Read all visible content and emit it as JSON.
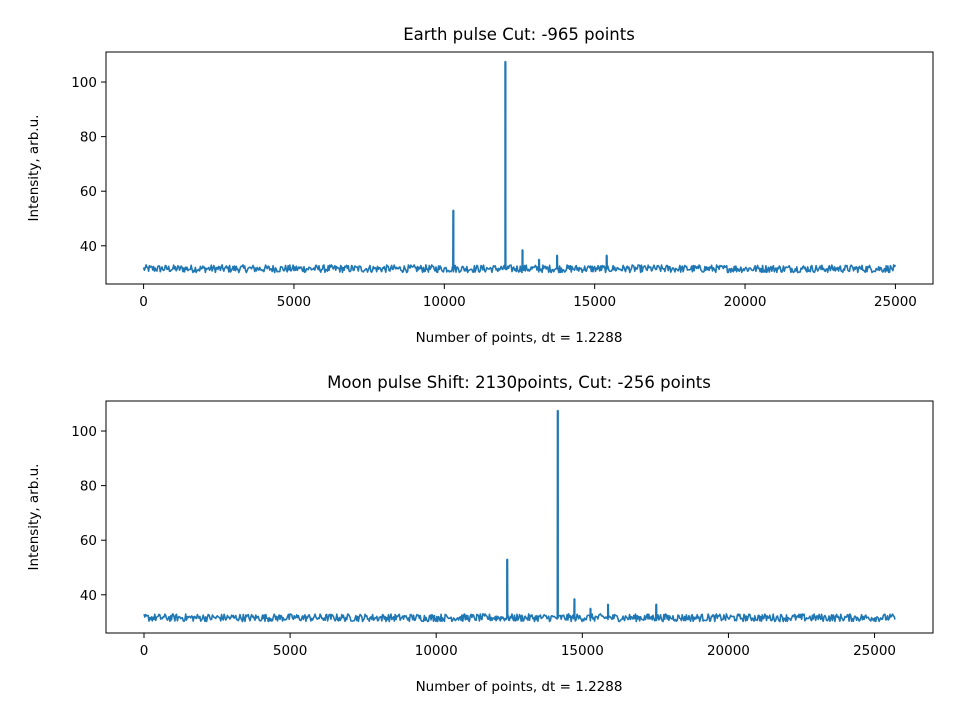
{
  "chart_data": [
    {
      "type": "line",
      "title": "Earth pulse Cut: -965 points",
      "xlabel": "Number of points, dt = 1.2288",
      "ylabel": "Intensity, arb.u.",
      "xlim": [
        -1250,
        26250
      ],
      "ylim": [
        26,
        111
      ],
      "xticks": [
        0,
        5000,
        10000,
        15000,
        20000,
        25000
      ],
      "yticks": [
        40,
        60,
        80,
        100
      ],
      "color": "#1f77b4",
      "baseline": {
        "x_start": 0,
        "x_end": 25000,
        "mean": 31.6,
        "band": [
          30.2,
          33.0
        ]
      },
      "peaks": [
        {
          "x": 10300,
          "y": 53
        },
        {
          "x": 12030,
          "y": 107.5
        },
        {
          "x": 12600,
          "y": 38.5
        },
        {
          "x": 13150,
          "y": 35
        },
        {
          "x": 13750,
          "y": 36.5
        },
        {
          "x": 15400,
          "y": 36.5
        }
      ]
    },
    {
      "type": "line",
      "title": "Moon pulse Shift: 2130points, Cut: -256 points",
      "xlabel": "Number of points, dt = 1.2288",
      "ylabel": "Intensity, arb.u.",
      "xlim": [
        -1300,
        27000
      ],
      "ylim": [
        26,
        111
      ],
      "xticks": [
        0,
        5000,
        10000,
        15000,
        20000,
        25000
      ],
      "yticks": [
        40,
        60,
        80,
        100
      ],
      "color": "#1f77b4",
      "baseline": {
        "x_start": 0,
        "x_end": 25700,
        "mean": 31.6,
        "band": [
          30.2,
          33.0
        ]
      },
      "peaks": [
        {
          "x": 12430,
          "y": 53
        },
        {
          "x": 14160,
          "y": 107.5
        },
        {
          "x": 14730,
          "y": 38.5
        },
        {
          "x": 15280,
          "y": 35
        },
        {
          "x": 15880,
          "y": 36.5
        },
        {
          "x": 17530,
          "y": 36.5
        }
      ]
    }
  ]
}
